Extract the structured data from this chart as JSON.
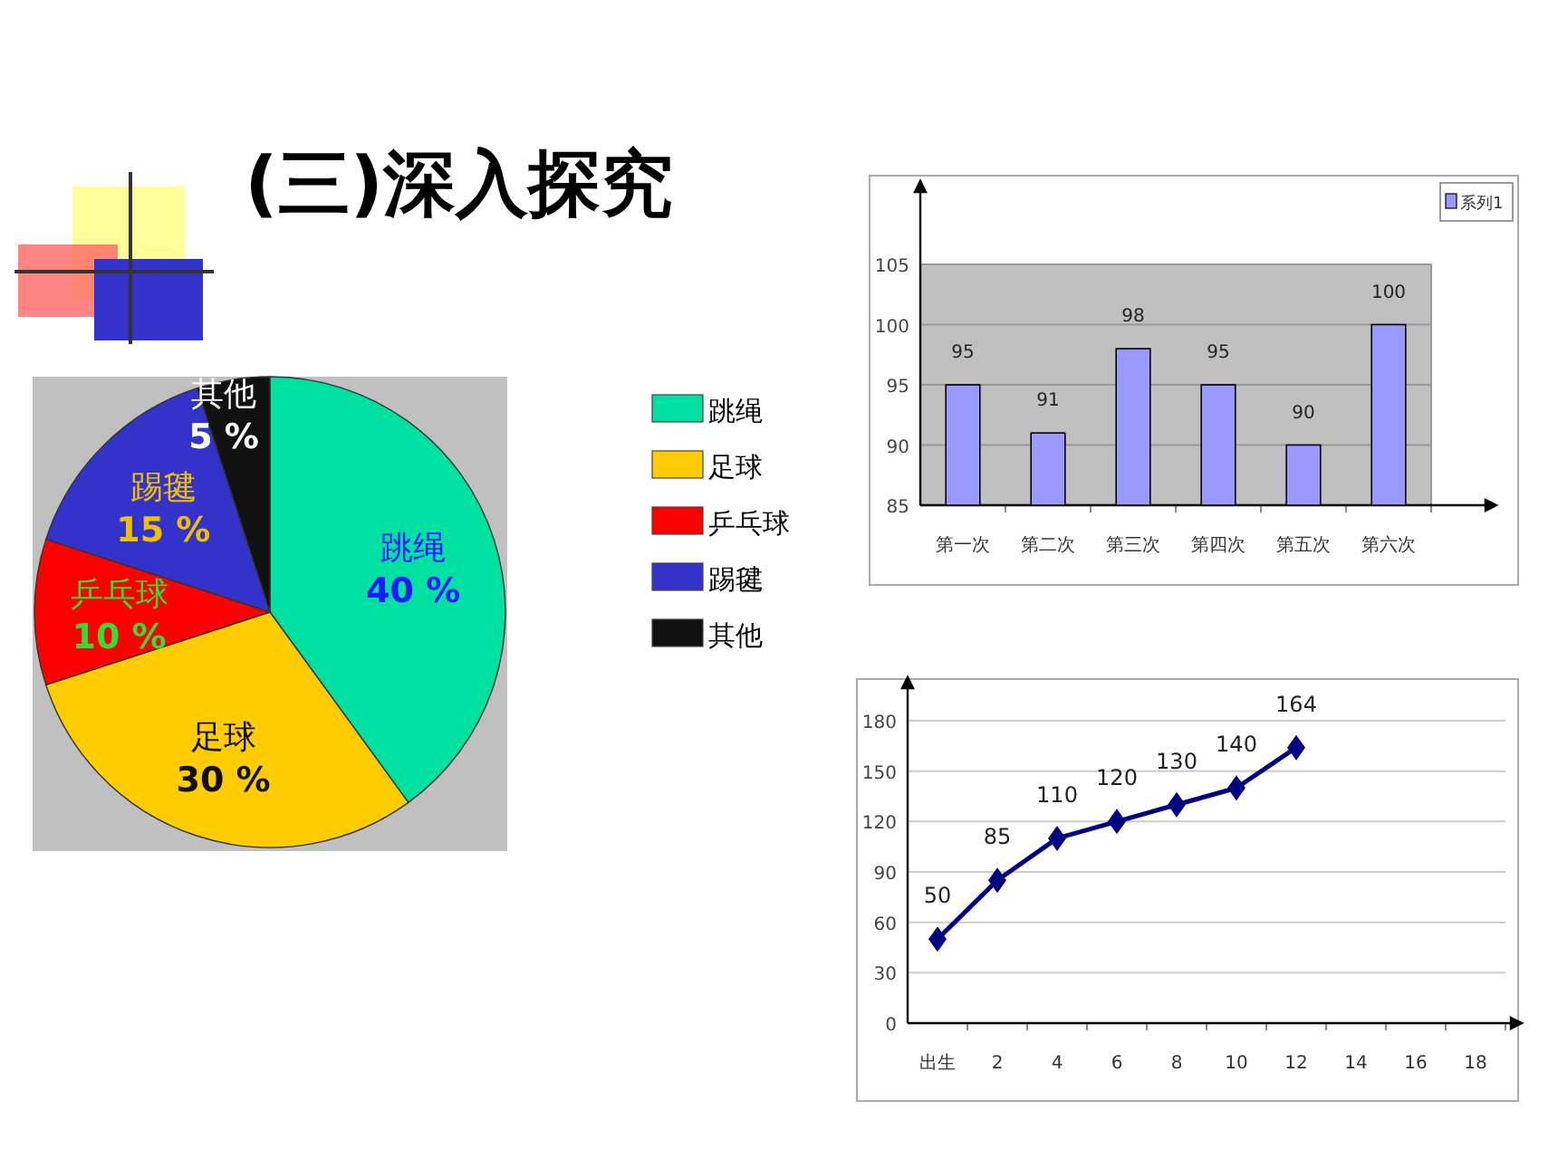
{
  "chart_data": [
    {
      "type": "pie",
      "title": "(三)深入探究",
      "categories": [
        "跳绳",
        "足球",
        "乒乓球",
        "踢毽",
        "其他"
      ],
      "values": [
        40,
        30,
        10,
        15,
        5
      ],
      "colors": [
        "#00e0a0",
        "#ffcc00",
        "#ff0000",
        "#3333cc",
        "#111111"
      ],
      "value_labels": [
        "40 %",
        "30 %",
        "10 %",
        "15 %",
        "5 %"
      ],
      "legend": "right"
    },
    {
      "type": "bar",
      "categories": [
        "第一次",
        "第二次",
        "第三次",
        "第四次",
        "第五次",
        "第六次"
      ],
      "series": [
        {
          "name": "系列1",
          "color": "#9999ff",
          "values": [
            95,
            91,
            98,
            95,
            90,
            100
          ]
        }
      ],
      "ylim": [
        85,
        105
      ],
      "yticks": [
        85,
        90,
        95,
        100,
        105
      ],
      "grid": "y",
      "data_labels": true,
      "legend": "top right"
    },
    {
      "type": "line",
      "categories": [
        "出生",
        "2",
        "4",
        "6",
        "8",
        "10",
        "12",
        "14",
        "16",
        "18"
      ],
      "series": [
        {
          "color": "#000080",
          "values": [
            50,
            85,
            110,
            120,
            130,
            140,
            164,
            null,
            null,
            null
          ]
        }
      ],
      "ylim": [
        0,
        180
      ],
      "yticks": [
        0,
        30,
        60,
        90,
        120,
        150,
        180
      ],
      "grid": "y",
      "data_labels": true,
      "marker": "diamond",
      "line_style": "solid"
    }
  ]
}
